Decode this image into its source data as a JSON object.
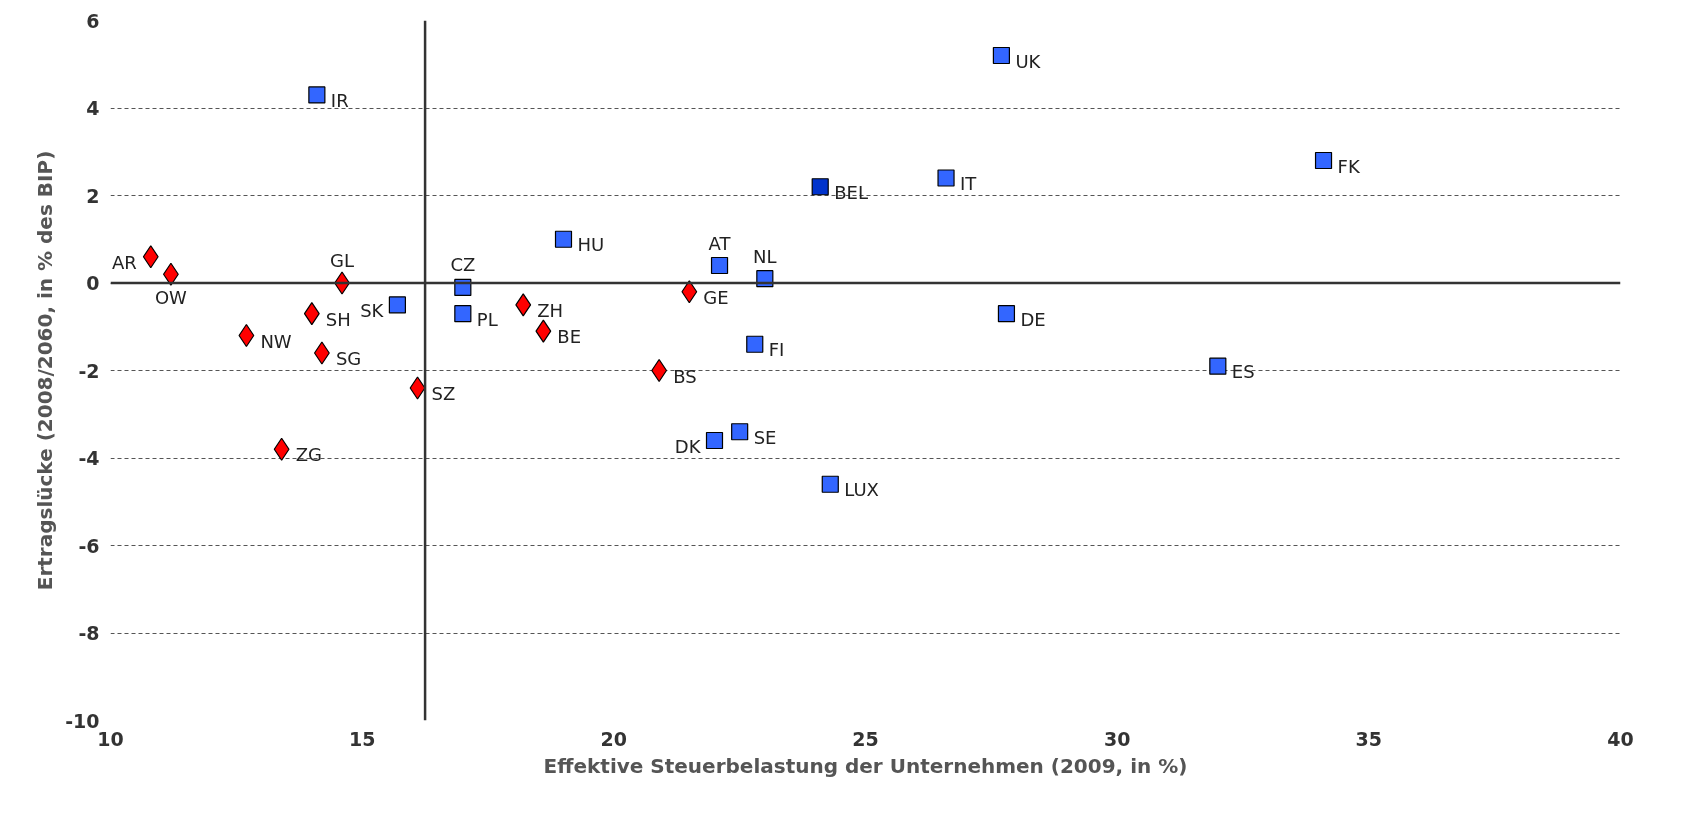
{
  "chart_data": {
    "type": "scatter",
    "xlabel": "Effektive Steuerbelastung der Unternehmen (2009, in %)",
    "ylabel": "Ertragslücke (2008/2060, in % des BIP)",
    "xlim": [
      10,
      40
    ],
    "xticks": [
      10,
      15,
      20,
      25,
      30,
      35,
      40
    ],
    "ylim": [
      -10,
      6
    ],
    "yticks": [
      -10,
      -8,
      -6,
      -4,
      -2,
      0,
      2,
      4,
      6
    ],
    "grid": "y",
    "ref_lines": [
      {
        "axis": "x",
        "value": 16.25,
        "color": "#333333"
      },
      {
        "axis": "y",
        "value": 0,
        "color": "#333333"
      }
    ],
    "series": [
      {
        "marker": "square",
        "color": "#3366ff",
        "colors": [
          null,
          null,
          "#0033cc",
          null,
          null,
          null,
          null,
          null,
          null,
          null,
          null,
          null,
          null,
          null,
          null,
          null,
          null
        ],
        "x": [
          14.1,
          27.7,
          24.1,
          26.6,
          34.1,
          19.0,
          22.1,
          23.0,
          17.0,
          15.7,
          17.0,
          27.8,
          22.8,
          32.0,
          22.0,
          22.5,
          24.3
        ],
        "values": [
          4.3,
          5.2,
          2.2,
          2.4,
          2.8,
          1.0,
          0.4,
          0.1,
          -0.1,
          -0.5,
          -0.7,
          -0.7,
          -1.4,
          -1.9,
          -3.6,
          -3.4,
          -4.6
        ]
      },
      {
        "marker": "diamond",
        "color": "#ff0000",
        "x": [
          10.8,
          11.2,
          14.6,
          14.0,
          12.7,
          14.2,
          16.1,
          13.4,
          18.2,
          18.6,
          21.5,
          20.9
        ],
        "values": [
          0.6,
          0.2,
          0.0,
          -0.7,
          -1.2,
          -1.6,
          -2.4,
          -3.8,
          -0.5,
          -1.1,
          -0.2,
          -2.0
        ]
      }
    ],
    "annotations": [
      {
        "text": "IR",
        "x": 14.1,
        "y": 4.3
      },
      {
        "text": "UK",
        "x": 27.7,
        "y": 5.2
      },
      {
        "text": "BEL",
        "x": 24.1,
        "y": 2.2
      },
      {
        "text": "IT",
        "x": 26.6,
        "y": 2.4
      },
      {
        "text": "FK",
        "x": 34.1,
        "y": 2.8
      },
      {
        "text": "HU",
        "x": 19.0,
        "y": 1.0
      },
      {
        "text": "AT",
        "x": 22.1,
        "y": 0.4
      },
      {
        "text": "NL",
        "x": 23.0,
        "y": 0.1
      },
      {
        "text": "CZ",
        "x": 17.0,
        "y": -0.1
      },
      {
        "text": "SK",
        "x": 15.7,
        "y": -0.5
      },
      {
        "text": "PL",
        "x": 17.0,
        "y": -0.7
      },
      {
        "text": "DE",
        "x": 27.8,
        "y": -0.7
      },
      {
        "text": "FI",
        "x": 22.8,
        "y": -1.4
      },
      {
        "text": "ES",
        "x": 32.0,
        "y": -1.9
      },
      {
        "text": "DK",
        "x": 22.0,
        "y": -3.6
      },
      {
        "text": "SE",
        "x": 22.5,
        "y": -3.4
      },
      {
        "text": "LUX",
        "x": 24.3,
        "y": -4.6
      },
      {
        "text": "AR",
        "x": 10.8,
        "y": 0.6
      },
      {
        "text": "OW",
        "x": 11.2,
        "y": 0.2
      },
      {
        "text": "GL",
        "x": 14.6,
        "y": 0.0
      },
      {
        "text": "SH",
        "x": 14.0,
        "y": -0.7
      },
      {
        "text": "NW",
        "x": 12.7,
        "y": -1.2
      },
      {
        "text": "SG",
        "x": 14.2,
        "y": -1.6
      },
      {
        "text": "SZ",
        "x": 16.1,
        "y": -2.4
      },
      {
        "text": "ZG",
        "x": 13.4,
        "y": -3.8
      },
      {
        "text": "ZH",
        "x": 18.2,
        "y": -0.5
      },
      {
        "text": "BE",
        "x": 18.6,
        "y": -1.1
      },
      {
        "text": "GE",
        "x": 21.5,
        "y": -0.2
      },
      {
        "text": "BS",
        "x": 20.9,
        "y": -2.0
      }
    ]
  }
}
